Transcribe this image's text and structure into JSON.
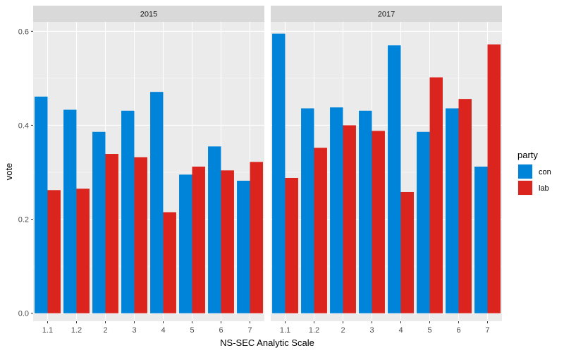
{
  "chart_data": {
    "type": "bar",
    "layout": "faceted-grouped",
    "xlabel": "NS-SEC Analytic Scale",
    "ylabel": "vote",
    "ylim": [
      -0.017,
      0.62
    ],
    "yticks": [
      0.0,
      0.2,
      0.4,
      0.6
    ],
    "ytick_labels": [
      "0.0",
      "0.2",
      "0.4",
      "0.6"
    ],
    "categories": [
      "1.1",
      "1.2",
      "2",
      "3",
      "4",
      "5",
      "6",
      "7"
    ],
    "grid": true,
    "legend": {
      "title": "party",
      "placement": "right",
      "entries": [
        {
          "key": "con",
          "label": "con",
          "color": "#0084D9"
        },
        {
          "key": "lab",
          "label": "lab",
          "color": "#DA241D"
        }
      ]
    },
    "facets": [
      {
        "label": "2015",
        "series": [
          {
            "key": "con",
            "values": [
              0.461,
              0.433,
              0.386,
              0.431,
              0.471,
              0.295,
              0.355,
              0.282
            ]
          },
          {
            "key": "lab",
            "values": [
              0.262,
              0.265,
              0.339,
              0.332,
              0.215,
              0.312,
              0.304,
              0.322
            ]
          }
        ]
      },
      {
        "label": "2017",
        "series": [
          {
            "key": "con",
            "values": [
              0.595,
              0.436,
              0.438,
              0.431,
              0.57,
              0.386,
              0.436,
              0.312
            ]
          },
          {
            "key": "lab",
            "values": [
              0.288,
              0.352,
              0.4,
              0.388,
              0.258,
              0.502,
              0.456,
              0.572
            ]
          }
        ]
      }
    ]
  }
}
